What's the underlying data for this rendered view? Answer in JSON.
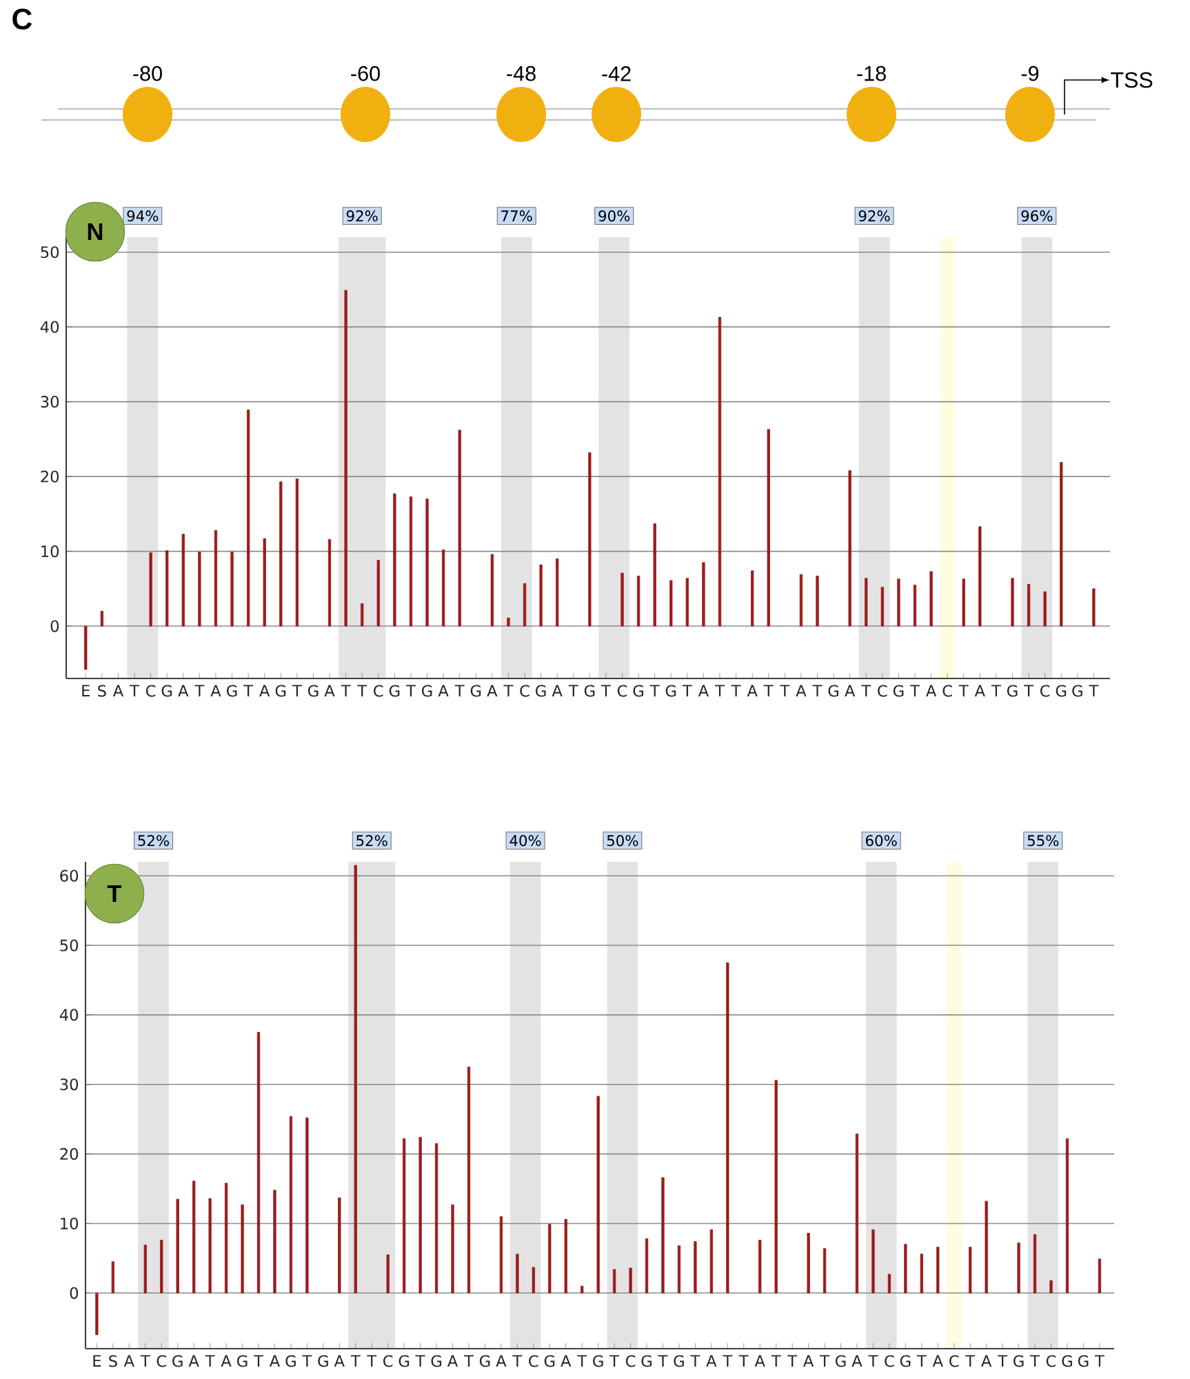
{
  "chart_data": [
    {
      "type": "bar",
      "categories": [
        "E",
        "S",
        "A",
        "T",
        "C",
        "G",
        "A",
        "T",
        "A",
        "G",
        "T",
        "A",
        "G",
        "T",
        "G",
        "A",
        "T",
        "T",
        "C",
        "G",
        "T",
        "G",
        "A",
        "T",
        "G",
        "A",
        "T",
        "C",
        "G",
        "A",
        "T",
        "G",
        "T",
        "C",
        "G",
        "T",
        "G",
        "T",
        "A",
        "T",
        "T",
        "A",
        "T",
        "T",
        "A",
        "T",
        "G",
        "A",
        "T",
        "C",
        "G",
        "T",
        "A",
        "C",
        "T",
        "A",
        "T",
        "G",
        "T",
        "C",
        "G",
        "G",
        "T"
      ],
      "series": [
        {
          "color": "#9b1c1c",
          "values": [
            -5.8,
            2,
            null,
            null,
            9.8,
            10.1,
            12.3,
            9.9,
            12.8,
            9.9,
            28.9,
            11.7,
            19.3,
            19.7,
            null,
            11.6,
            44.9,
            3,
            8.8,
            17.7,
            17.3,
            17.0,
            10.2,
            26.2,
            null,
            9.6,
            1.1,
            5.7,
            8.2,
            9.0,
            null,
            23.2,
            null,
            7.1,
            6.7,
            13.7,
            6.1,
            6.4,
            8.5,
            41.3,
            null,
            7.4,
            26.3,
            null,
            6.9,
            6.7,
            null,
            20.8,
            6.4,
            5.2,
            6.3,
            5.5,
            7.3,
            null,
            6.3,
            13.3,
            null,
            6.4,
            5.6,
            4.6,
            21.9,
            null,
            5.0
          ]
        }
      ],
      "ylim": [
        -7,
        52
      ],
      "yticks": [
        0,
        10,
        20,
        30,
        40,
        50
      ],
      "grid": "y",
      "annotations": [
        "C",
        "-80",
        "-60",
        "-48",
        "-42",
        "-18",
        "-9",
        "TSS",
        "N",
        "94%",
        "92%",
        "77%",
        "90%",
        "92%",
        "96%"
      ]
    },
    {
      "type": "bar",
      "categories": [
        "E",
        "S",
        "A",
        "T",
        "C",
        "G",
        "A",
        "T",
        "A",
        "G",
        "T",
        "A",
        "G",
        "T",
        "G",
        "A",
        "T",
        "T",
        "C",
        "G",
        "T",
        "G",
        "A",
        "T",
        "G",
        "A",
        "T",
        "C",
        "G",
        "A",
        "T",
        "G",
        "T",
        "C",
        "G",
        "T",
        "G",
        "T",
        "A",
        "T",
        "T",
        "A",
        "T",
        "T",
        "A",
        "T",
        "G",
        "A",
        "T",
        "C",
        "G",
        "T",
        "A",
        "C",
        "T",
        "A",
        "T",
        "G",
        "T",
        "C",
        "G",
        "G",
        "T"
      ],
      "series": [
        {
          "color": "#9b1c1c",
          "values": [
            -6,
            4.5,
            null,
            6.9,
            7.6,
            13.5,
            16.1,
            13.6,
            15.8,
            12.7,
            37.5,
            14.8,
            25.4,
            25.2,
            null,
            13.7,
            61.5,
            null,
            5.5,
            22.2,
            22.4,
            21.5,
            12.7,
            32.5,
            null,
            11.0,
            5.6,
            3.7,
            9.9,
            10.6,
            1,
            28.3,
            3.4,
            3.6,
            7.8,
            16.6,
            6.8,
            7.4,
            9.1,
            47.5,
            null,
            7.6,
            30.6,
            null,
            8.6,
            6.4,
            null,
            22.9,
            9.1,
            2.7,
            7.0,
            5.6,
            6.6,
            null,
            6.6,
            13.2,
            null,
            7.2,
            8.4,
            1.8,
            22.2,
            null,
            4.9
          ]
        }
      ],
      "ylim": [
        -8,
        62
      ],
      "yticks": [
        0,
        10,
        20,
        30,
        40,
        50,
        60
      ],
      "grid": "y",
      "annotations": [
        "T",
        "52%",
        "52%",
        "40%",
        "50%",
        "60%",
        "55%"
      ]
    }
  ]
}
